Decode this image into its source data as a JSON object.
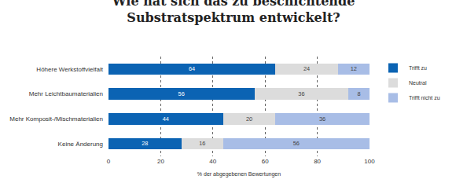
{
  "chart_data": {
    "type": "bar",
    "title": "Wie hat sich das zu beschichtende Substratspektrum entwickelt?",
    "orientation": "horizontal",
    "stacked": true,
    "data_labels": true,
    "grid": true,
    "legend": "top-right",
    "categories": [
      "Höhere Werkstoffvielfalt",
      "Mehr Leichtbaumaterialien",
      "Mehr Komposit-/Mischmaterialien",
      "Keine Änderung"
    ],
    "series": [
      {
        "name": "Trifft zu",
        "color": "#0b63b3",
        "values": [
          64,
          56,
          44,
          28
        ]
      },
      {
        "name": "Neutral",
        "color": "#dcdcdc",
        "values": [
          24,
          36,
          20,
          16
        ]
      },
      {
        "name": "Trifft nicht zu",
        "color": "#a8bde6",
        "values": [
          12,
          8,
          36,
          56
        ]
      }
    ],
    "xlim": [
      0,
      100
    ],
    "xticks": [
      0,
      20,
      40,
      60,
      80,
      100
    ],
    "x_label": "% der abgegebenen Bewertungen"
  }
}
